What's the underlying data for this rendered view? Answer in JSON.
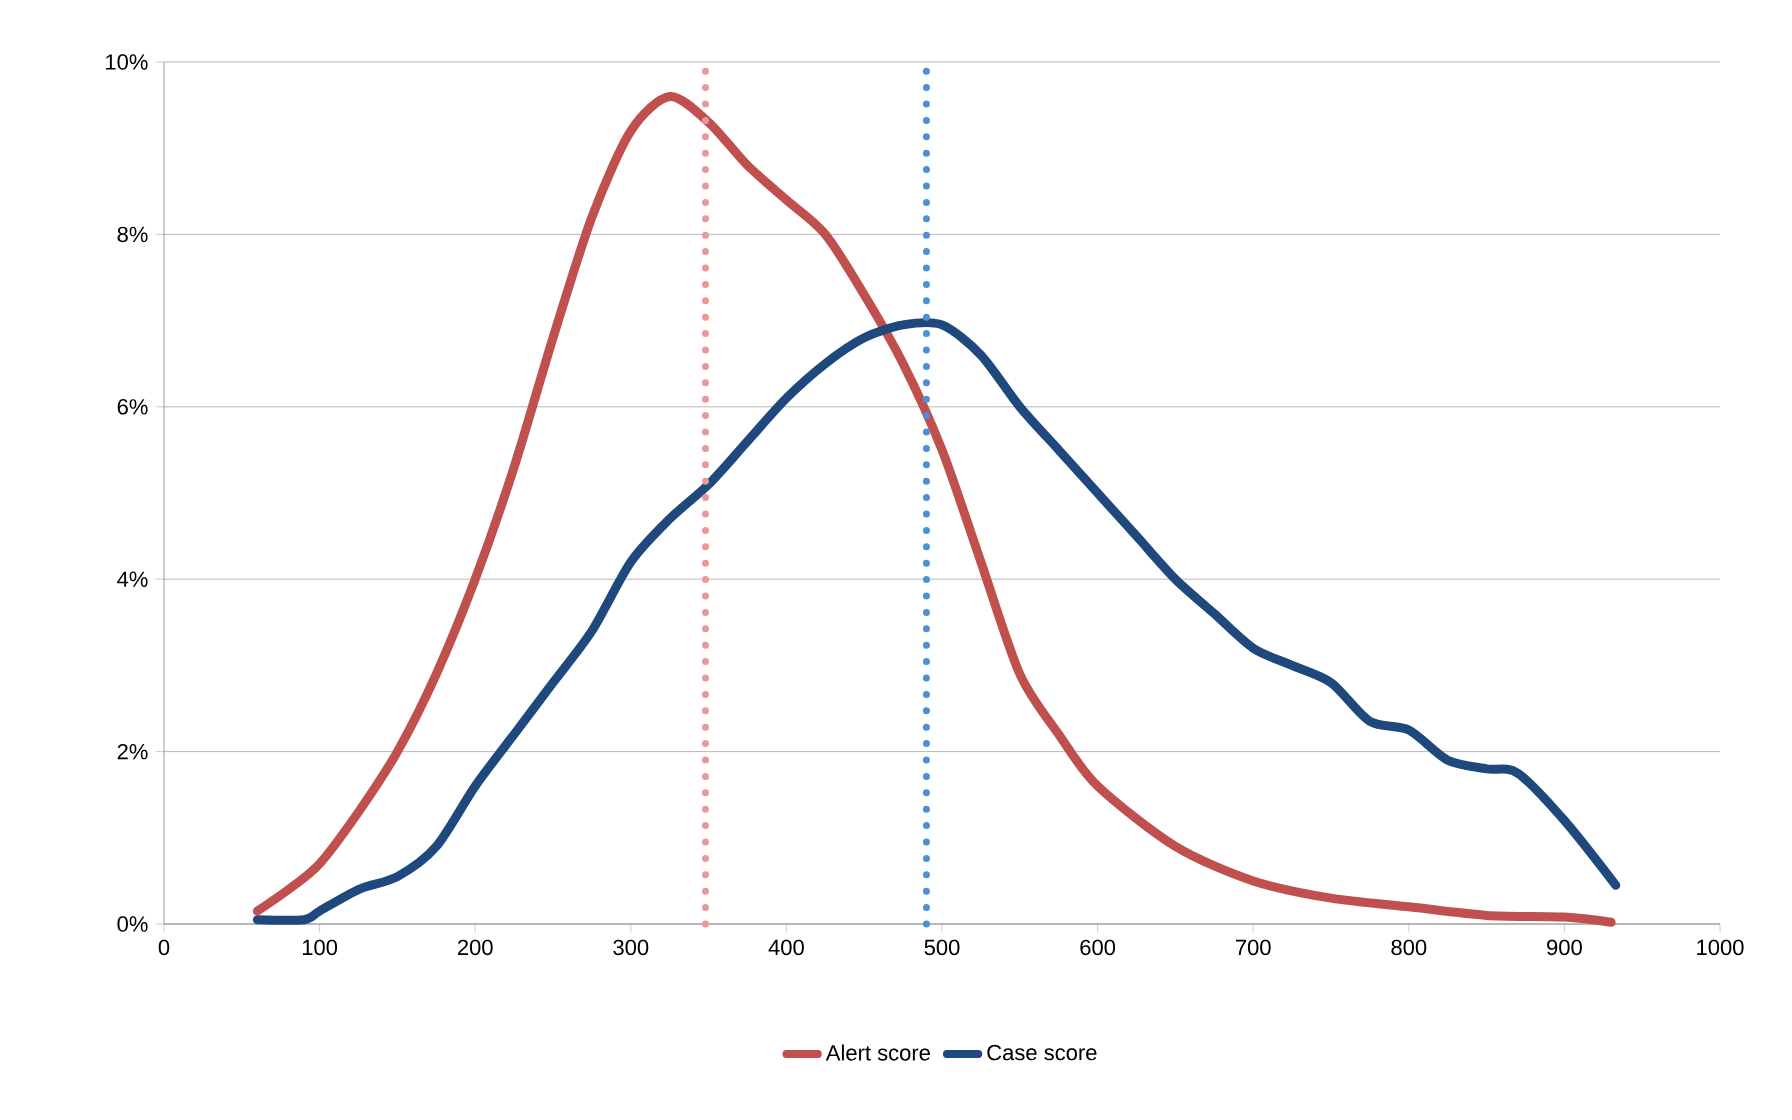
{
  "chart_data": {
    "type": "line",
    "xlim": [
      0,
      1000
    ],
    "xticks": [
      0,
      100,
      200,
      300,
      400,
      500,
      600,
      700,
      800,
      900,
      1000
    ],
    "ylim": [
      0,
      10
    ],
    "yticks": [
      {
        "value": 0,
        "label": "0%"
      },
      {
        "value": 2,
        "label": "2%"
      },
      {
        "value": 4,
        "label": "4%"
      },
      {
        "value": 6,
        "label": "6%"
      },
      {
        "value": 8,
        "label": "8%"
      },
      {
        "value": 10,
        "label": "10%"
      }
    ],
    "grid": "y",
    "legend": "bottom",
    "marker": "none",
    "line_style": "solid",
    "series": [
      {
        "name": "Alert score",
        "color": "#c0504d",
        "x": [
          60,
          80,
          100,
          125,
          150,
          175,
          200,
          225,
          250,
          275,
          300,
          325,
          350,
          375,
          400,
          425,
          450,
          475,
          500,
          525,
          550,
          575,
          600,
          650,
          700,
          750,
          800,
          850,
          900,
          930
        ],
        "values": [
          0.15,
          0.4,
          0.7,
          1.3,
          2.0,
          2.9,
          4.0,
          5.3,
          6.8,
          8.2,
          9.2,
          9.6,
          9.3,
          8.8,
          8.4,
          8.0,
          7.3,
          6.5,
          5.5,
          4.2,
          2.9,
          2.2,
          1.6,
          0.9,
          0.5,
          0.3,
          0.2,
          0.1,
          0.08,
          0.02
        ]
      },
      {
        "name": "Case score",
        "color": "#1f497d",
        "x": [
          60,
          90,
          100,
          125,
          150,
          175,
          200,
          225,
          250,
          275,
          300,
          325,
          350,
          375,
          400,
          425,
          450,
          475,
          500,
          525,
          550,
          575,
          600,
          625,
          650,
          675,
          700,
          725,
          750,
          775,
          800,
          825,
          850,
          870,
          900,
          933
        ],
        "values": [
          0.05,
          0.05,
          0.15,
          0.4,
          0.55,
          0.9,
          1.6,
          2.2,
          2.8,
          3.4,
          4.2,
          4.7,
          5.1,
          5.6,
          6.1,
          6.5,
          6.8,
          6.95,
          6.95,
          6.6,
          6.0,
          5.5,
          5.0,
          4.5,
          4.0,
          3.6,
          3.2,
          3.0,
          2.8,
          2.35,
          2.25,
          1.9,
          1.8,
          1.75,
          1.2,
          0.45
        ]
      }
    ],
    "ref_lines": [
      {
        "axis": "x",
        "value": 348,
        "color": "#e6999a",
        "line_style": "dotted"
      },
      {
        "axis": "x",
        "value": 490,
        "color": "#4f8fd8",
        "line_style": "dotted"
      }
    ]
  }
}
